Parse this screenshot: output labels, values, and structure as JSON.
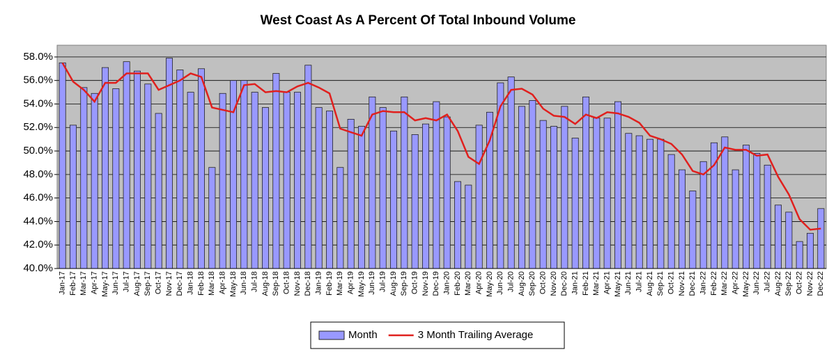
{
  "chart_data": {
    "type": "bar",
    "title": "West Coast As A Percent Of Total Inbound Volume",
    "categories": [
      "Jan-17",
      "Feb-17",
      "Mar-17",
      "Apr-17",
      "May-17",
      "Jun-17",
      "Jul-17",
      "Aug-17",
      "Sep-17",
      "Oct-17",
      "Nov-17",
      "Dec-17",
      "Jan-18",
      "Feb-18",
      "Mar-18",
      "Apr-18",
      "May-18",
      "Jun-18",
      "Jul-18",
      "Aug-18",
      "Sep-18",
      "Oct-18",
      "Nov-18",
      "Dec-18",
      "Jan-19",
      "Feb-19",
      "Mar-19",
      "Apr-19",
      "May-19",
      "Jun-19",
      "Jul-19",
      "Aug-19",
      "Sep-19",
      "Oct-19",
      "Nov-19",
      "Dec-19",
      "Jan-20",
      "Feb-20",
      "Mar-20",
      "Apr-20",
      "May-20",
      "Jun-20",
      "Jul-20",
      "Aug-20",
      "Sep-20",
      "Oct-20",
      "Nov-20",
      "Dec-20",
      "Jan-21",
      "Feb-21",
      "Mar-21",
      "Apr-21",
      "May-21",
      "Jun-21",
      "Jul-21",
      "Aug-21",
      "Sep-21",
      "Oct-21",
      "Nov-21",
      "Dec-21",
      "Jan-22",
      "Feb-22",
      "Mar-22",
      "Apr-22",
      "May-22",
      "Jun-22",
      "Jul-22",
      "Aug-22",
      "Sep-22",
      "Oct-22",
      "Nov-22",
      "Dec-22"
    ],
    "series": [
      {
        "name": "Month",
        "type": "bar",
        "color": "#9999ff",
        "values": [
          57.5,
          52.2,
          55.4,
          54.9,
          57.1,
          55.3,
          57.6,
          56.8,
          55.7,
          53.2,
          57.9,
          56.9,
          55.0,
          57.0,
          48.6,
          54.9,
          56.0,
          56.0,
          55.0,
          53.7,
          56.6,
          55.0,
          55.0,
          57.3,
          53.7,
          53.4,
          48.6,
          52.7,
          52.1,
          54.6,
          53.7,
          51.7,
          54.6,
          51.4,
          52.3,
          54.2,
          52.9,
          47.4,
          47.1,
          52.2,
          53.3,
          55.8,
          56.3,
          53.8,
          54.3,
          52.6,
          52.1,
          53.8,
          51.1,
          54.6,
          52.8,
          52.8,
          54.2,
          51.5,
          51.3,
          51.0,
          51.0,
          49.7,
          48.4,
          46.6,
          49.1,
          50.7,
          51.2,
          48.4,
          50.5,
          49.8,
          48.8,
          45.4,
          44.8,
          42.3,
          43.0,
          45.1
        ]
      },
      {
        "name": "3 Month Trailing Average",
        "type": "line",
        "color": "#e0201e",
        "values": [
          57.5,
          55.9,
          55.2,
          54.2,
          55.8,
          55.8,
          56.6,
          56.6,
          56.6,
          55.2,
          55.6,
          56.0,
          56.6,
          56.3,
          53.7,
          53.5,
          53.3,
          55.6,
          55.7,
          55.0,
          55.1,
          55.0,
          55.5,
          55.8,
          55.4,
          54.9,
          51.9,
          51.6,
          51.3,
          53.1,
          53.4,
          53.3,
          53.3,
          52.6,
          52.8,
          52.6,
          53.1,
          51.7,
          49.5,
          48.9,
          50.9,
          53.8,
          55.2,
          55.3,
          54.8,
          53.6,
          53.0,
          52.9,
          52.3,
          53.1,
          52.8,
          53.3,
          53.2,
          52.9,
          52.4,
          51.3,
          51.0,
          50.6,
          49.7,
          48.3,
          48.0,
          48.8,
          50.3,
          50.1,
          50.1,
          49.6,
          49.7,
          47.8,
          46.3,
          44.2,
          43.3,
          43.4
        ]
      }
    ],
    "ylim": [
      40,
      59
    ],
    "yticks": [
      {
        "value": 40,
        "label": "40.0%"
      },
      {
        "value": 42,
        "label": "42.0%"
      },
      {
        "value": 44,
        "label": "44.0%"
      },
      {
        "value": 46,
        "label": "46.0%"
      },
      {
        "value": 48,
        "label": "48.0%"
      },
      {
        "value": 50,
        "label": "50.0%"
      },
      {
        "value": 52,
        "label": "52.0%"
      },
      {
        "value": 54,
        "label": "54.0%"
      },
      {
        "value": 56,
        "label": "56.0%"
      },
      {
        "value": 58,
        "label": "58.0%"
      }
    ],
    "grid": true,
    "legend": "bottom"
  }
}
